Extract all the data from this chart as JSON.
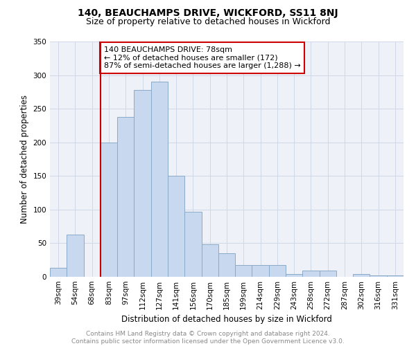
{
  "title": "140, BEAUCHAMPS DRIVE, WICKFORD, SS11 8NJ",
  "subtitle": "Size of property relative to detached houses in Wickford",
  "xlabel": "Distribution of detached houses by size in Wickford",
  "ylabel": "Number of detached properties",
  "categories": [
    "39sqm",
    "54sqm",
    "68sqm",
    "83sqm",
    "97sqm",
    "112sqm",
    "127sqm",
    "141sqm",
    "156sqm",
    "170sqm",
    "185sqm",
    "199sqm",
    "214sqm",
    "229sqm",
    "243sqm",
    "258sqm",
    "272sqm",
    "287sqm",
    "302sqm",
    "316sqm",
    "331sqm"
  ],
  "values": [
    13,
    63,
    0,
    200,
    238,
    278,
    290,
    150,
    97,
    48,
    35,
    17,
    18,
    18,
    4,
    9,
    9,
    0,
    4,
    2,
    2
  ],
  "bar_color": "#c8d8ee",
  "bar_edge_color": "#8aaac8",
  "property_line_x": 2.5,
  "annotation_text": "140 BEAUCHAMPS DRIVE: 78sqm\n← 12% of detached houses are smaller (172)\n87% of semi-detached houses are larger (1,288) →",
  "annotation_box_color": "#ffffff",
  "annotation_box_edge": "#cc0000",
  "property_line_color": "#cc0000",
  "ylim": [
    0,
    350
  ],
  "yticks": [
    0,
    50,
    100,
    150,
    200,
    250,
    300,
    350
  ],
  "footnote": "Contains HM Land Registry data © Crown copyright and database right 2024.\nContains public sector information licensed under the Open Government Licence v3.0.",
  "title_fontsize": 10,
  "subtitle_fontsize": 9,
  "axis_label_fontsize": 8.5,
  "tick_fontsize": 7.5,
  "annotation_fontsize": 8,
  "footnote_fontsize": 6.5,
  "background_color": "#ffffff",
  "grid_color": "#d0d8e8",
  "axes_bg_color": "#eef2f8"
}
